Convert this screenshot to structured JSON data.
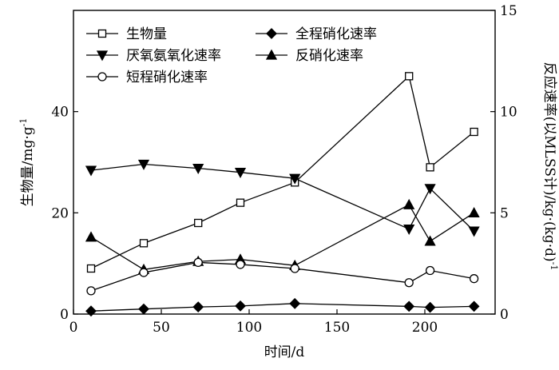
{
  "chart_data": {
    "type": "line",
    "xlabel": "时间/d",
    "ylabel_left": "生物量/mg·g",
    "ylabel_left_sup": "-1",
    "ylabel_right": "反应速率(以MLSS计)/kg·(kg·d)",
    "ylabel_right_sup": "-1",
    "xlim": [
      0,
      240
    ],
    "ylim_left": [
      0,
      60
    ],
    "ylim_right": [
      0,
      15
    ],
    "xticks": [
      "0",
      "50",
      "100",
      "150",
      "200"
    ],
    "xtick_values": [
      0,
      50,
      100,
      150,
      200
    ],
    "yticks_left": [
      "0",
      "20",
      "40"
    ],
    "ytick_values_left": [
      0,
      20,
      40
    ],
    "yticks_right": [
      "0",
      "5",
      "10",
      "15"
    ],
    "ytick_values_right": [
      0,
      5,
      10,
      15
    ],
    "grid": false,
    "legend_position": "top",
    "series": [
      {
        "name": "生物量",
        "marker": "square-open",
        "axis": "left",
        "x": [
          10,
          40,
          71,
          95,
          126,
          191,
          203,
          228
        ],
        "y": [
          9,
          14,
          18,
          22,
          26,
          47,
          29,
          36
        ]
      },
      {
        "name": "全程硝化速率",
        "marker": "diamond-filled",
        "axis": "right",
        "x": [
          10,
          40,
          71,
          95,
          126,
          191,
          203,
          228
        ],
        "y": [
          0.15,
          0.25,
          0.35,
          0.4,
          0.52,
          0.38,
          0.33,
          0.38
        ]
      },
      {
        "name": "厌氧氨氧化速率",
        "marker": "triangle-down-filled",
        "axis": "right",
        "x": [
          10,
          40,
          71,
          95,
          126,
          191,
          203,
          228
        ],
        "y": [
          7.1,
          7.4,
          7.2,
          7.0,
          6.7,
          4.2,
          6.2,
          4.1
        ]
      },
      {
        "name": "反硝化速率",
        "marker": "triangle-up-filled",
        "axis": "right",
        "x": [
          10,
          40,
          71,
          95,
          126,
          191,
          203,
          228
        ],
        "y": [
          3.8,
          2.2,
          2.6,
          2.7,
          2.4,
          5.4,
          3.6,
          5.0
        ]
      },
      {
        "name": "短程硝化速率",
        "marker": "circle-open",
        "axis": "right",
        "x": [
          10,
          40,
          71,
          95,
          126,
          191,
          203,
          228
        ],
        "y": [
          1.15,
          2.05,
          2.55,
          2.45,
          2.25,
          1.55,
          2.15,
          1.75
        ]
      }
    ]
  }
}
